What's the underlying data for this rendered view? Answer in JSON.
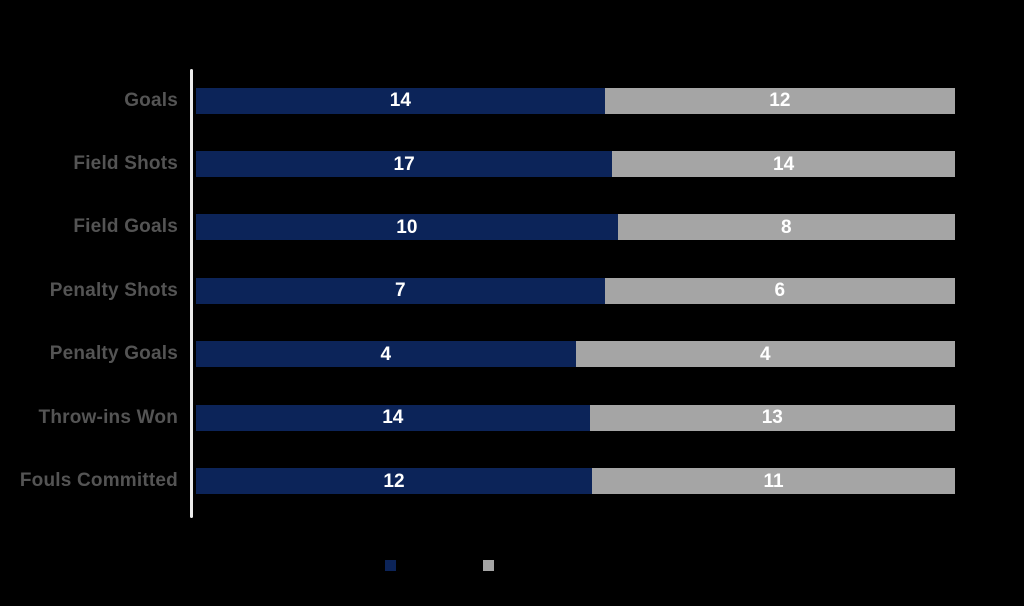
{
  "page": {
    "background_color": "#000000"
  },
  "chart_data": {
    "type": "bar",
    "variant": "100%-stacked",
    "orientation": "horizontal",
    "title": "",
    "xlabel": "",
    "ylabel": "",
    "grid": false,
    "axis_tick_labels": "none",
    "axis_line_color": "#ededed",
    "category_label_color": "#545454",
    "value_label_color": "#ffffff",
    "categories": [
      "Goals",
      "Field Shots",
      "Field Goals",
      "Penalty Shots",
      "Penalty Goals",
      "Throw-ins Won",
      "Fouls Committed"
    ],
    "series": [
      {
        "name": "",
        "color": "#0c2459",
        "values": [
          14,
          17,
          10,
          7,
          4,
          14,
          12
        ]
      },
      {
        "name": "",
        "color": "#a5a5a5",
        "values": [
          12,
          14,
          8,
          6,
          4,
          13,
          11
        ]
      }
    ],
    "legend_position": "bottom",
    "legend": [
      {
        "label": "",
        "color": "#0c2459"
      },
      {
        "label": "",
        "color": "#a5a5a5"
      }
    ]
  }
}
